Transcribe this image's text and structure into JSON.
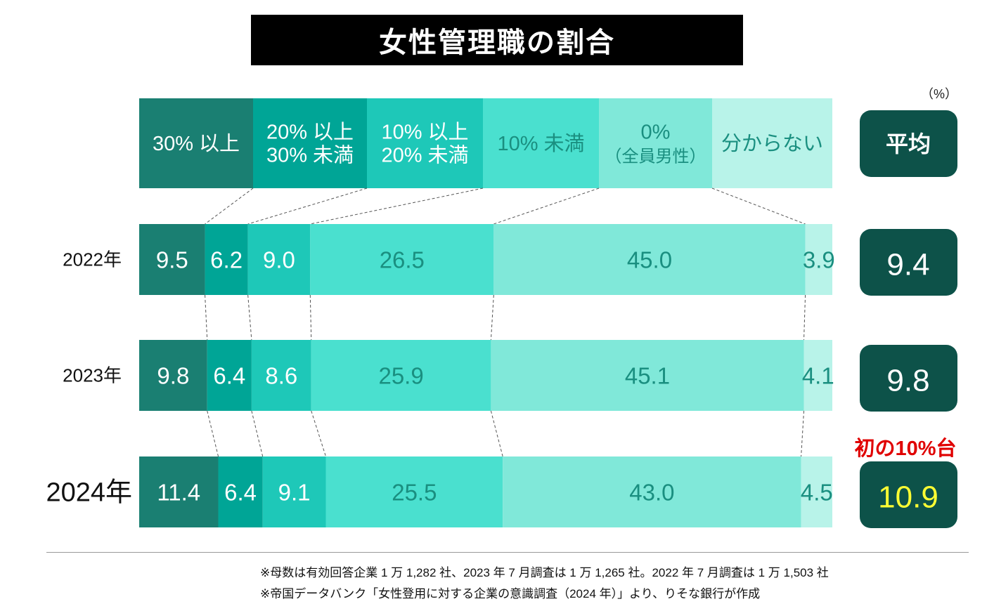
{
  "title": "女性管理職の割合",
  "unit": "（%）",
  "chart_data": {
    "type": "bar",
    "stacked": true,
    "orientation": "horizontal",
    "title": "女性管理職の割合",
    "categories": [
      "2022年",
      "2023年",
      "2024年"
    ],
    "series": [
      {
        "name": "30%以上",
        "label_lines": [
          "30% 以上"
        ],
        "color": "#1a7f72",
        "text_color": "#ffffff",
        "values": [
          9.5,
          9.8,
          11.4
        ]
      },
      {
        "name": "20%以上30%未満",
        "label_lines": [
          "20% 以上",
          "30% 未満"
        ],
        "color": "#00a596",
        "text_color": "#ffffff",
        "values": [
          6.2,
          6.4,
          6.4
        ]
      },
      {
        "name": "10%以上20%未満",
        "label_lines": [
          "10% 以上",
          "20% 未満"
        ],
        "color": "#1ec8b8",
        "text_color": "#ffffff",
        "values": [
          9.0,
          8.6,
          9.1
        ]
      },
      {
        "name": "10%未満",
        "label_lines": [
          "10% 未満"
        ],
        "color": "#4ae0cf",
        "text_color": "#1a8f80",
        "values": [
          26.5,
          25.9,
          25.5
        ]
      },
      {
        "name": "0%（全員男性）",
        "label_lines": [
          "0%",
          "（全員男性）"
        ],
        "color": "#80e8d9",
        "text_color": "#1a8f80",
        "values": [
          45.0,
          45.1,
          43.0
        ]
      },
      {
        "name": "分からない",
        "label_lines": [
          "分からない"
        ],
        "color": "#b8f3e9",
        "text_color": "#1a8f80",
        "values": [
          3.9,
          4.1,
          4.5
        ]
      }
    ],
    "average": {
      "header": "平均",
      "values": [
        "9.4",
        "9.8",
        "10.9"
      ],
      "box_color": "#0d5249",
      "highlight_color": "#ffff33"
    },
    "annotation": "初の10%台",
    "annotation_color": "#e00000"
  },
  "notes": [
    "※母数は有効回答企業 1 万 1,282 社、2023 年 7 月調査は 1 万 1,265 社。2022 年 7 月調査は 1 万 1,503 社",
    "※帝国データバンク「女性登用に対する企業の意識調査（2024 年）」より、りそな銀行が作成"
  ]
}
